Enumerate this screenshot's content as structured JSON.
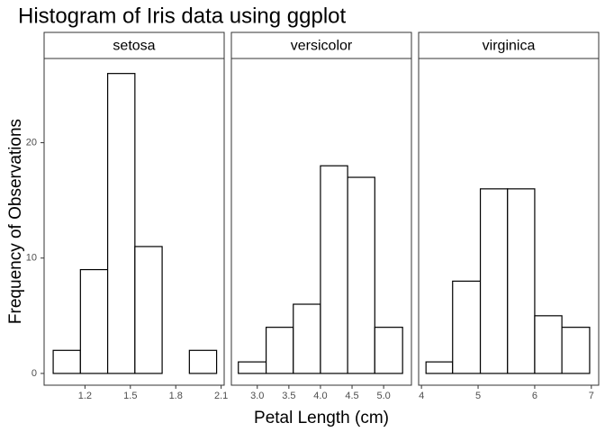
{
  "chart_data": {
    "type": "histogram",
    "title": "Histogram of Iris data using ggplot",
    "xlabel": "Petal Length (cm)",
    "ylabel": "Frequency of Observations",
    "ylim": [
      -1.02,
      27.3
    ],
    "yticks": [
      0,
      10,
      20
    ],
    "bar_fill": "#ffffff",
    "bar_stroke": "#000000",
    "panels": [
      {
        "title": "setosa",
        "bins": [
          0.99,
          1.17,
          1.35,
          1.53,
          1.71,
          1.89,
          2.07
        ],
        "values": [
          2,
          9,
          26,
          11,
          0,
          2
        ],
        "xlim": [
          0.93,
          2.12
        ],
        "xticks": [
          1.2,
          1.5,
          1.8,
          2.1
        ]
      },
      {
        "title": "versicolor",
        "bins": [
          2.7,
          3.14,
          3.57,
          4.0,
          4.43,
          4.86,
          5.3
        ],
        "values": [
          1,
          4,
          6,
          18,
          17,
          4
        ],
        "xlim": [
          2.59,
          5.44
        ],
        "xticks": [
          {
            "value": 3,
            "label": "3.0"
          },
          3.5,
          {
            "value": 4,
            "label": "4.0"
          },
          4.5,
          {
            "value": 5,
            "label": "5.0"
          }
        ]
      },
      {
        "title": "virginica",
        "bins": [
          4.08,
          4.55,
          5.04,
          5.52,
          6.0,
          6.48,
          6.97
        ],
        "values": [
          1,
          8,
          16,
          16,
          5,
          4
        ],
        "xlim": [
          3.95,
          7.13
        ],
        "xticks": [
          4,
          5,
          6,
          7
        ]
      }
    ]
  }
}
